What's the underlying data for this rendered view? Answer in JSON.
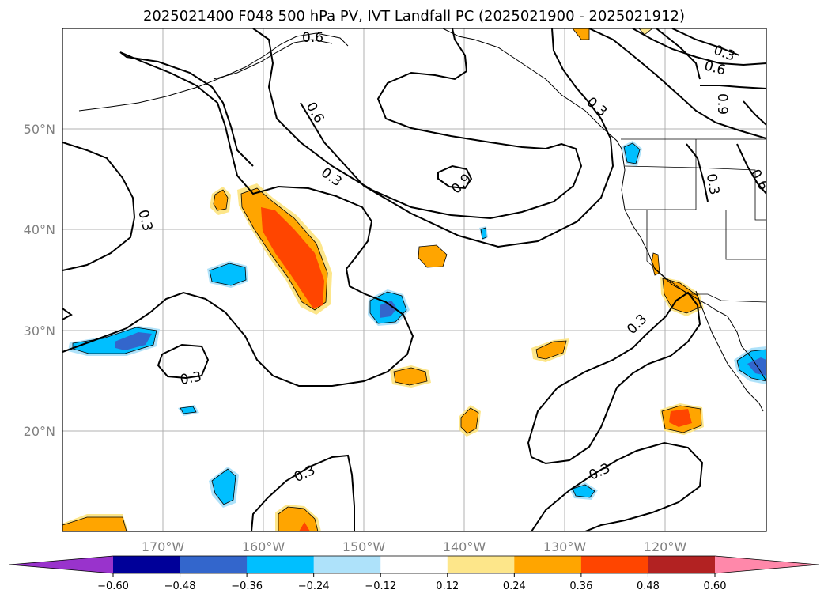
{
  "title": "2025021400 F048 500 hPa PV, IVT Landfall PC (2025021900 - 2025021912)",
  "map": {
    "lat_labels": [
      "50°N",
      "40°N",
      "30°N",
      "20°N"
    ],
    "lon_labels": [
      "170°W",
      "160°W",
      "150°W",
      "140°W",
      "130°W",
      "120°W"
    ],
    "contour_labels": [
      "0.6",
      "0.6",
      "0.3",
      "0.9",
      "0.3",
      "0.3",
      "0.3",
      "0.3",
      "0.3",
      "0.6",
      "0.9",
      "0.3",
      "0.6",
      "0.3",
      "0.3"
    ]
  },
  "colorbar": {
    "ticks": [
      "−0.60",
      "−0.48",
      "−0.36",
      "−0.24",
      "−0.12",
      "0.12",
      "0.24",
      "0.36",
      "0.48",
      "0.60"
    ],
    "colors": [
      "#9933cc",
      "#000099",
      "#3366cc",
      "#00bfff",
      "#aee2fa",
      "#ffffff",
      "#fde68a",
      "#ffa500",
      "#ff4500",
      "#b22222",
      "#ff88aa"
    ]
  }
}
